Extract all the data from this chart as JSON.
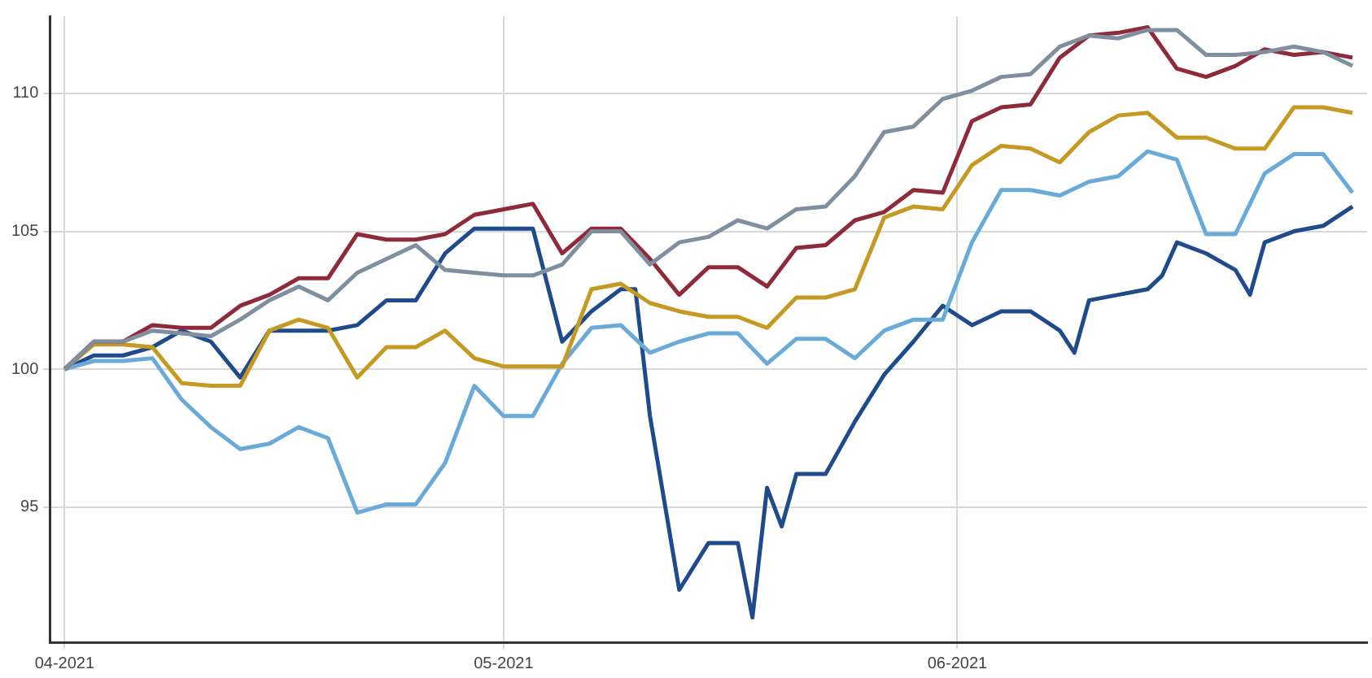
{
  "chart_data": {
    "type": "line",
    "x": [
      "2021-04-01",
      "2021-04-03",
      "2021-04-05",
      "2021-04-07",
      "2021-04-09",
      "2021-04-11",
      "2021-04-13",
      "2021-04-15",
      "2021-04-17",
      "2021-04-19",
      "2021-04-21",
      "2021-04-23",
      "2021-04-25",
      "2021-04-27",
      "2021-04-29",
      "2021-05-01",
      "2021-05-03",
      "2021-05-05",
      "2021-05-07",
      "2021-05-09",
      "2021-05-11",
      "2021-05-13",
      "2021-05-15",
      "2021-05-17",
      "2021-05-19",
      "2021-05-21",
      "2021-05-23",
      "2021-05-25",
      "2021-05-27",
      "2021-05-29",
      "2021-05-31",
      "2021-06-02",
      "2021-06-04",
      "2021-06-06",
      "2021-06-08",
      "2021-06-10",
      "2021-06-12",
      "2021-06-14",
      "2021-06-16",
      "2021-06-18",
      "2021-06-20",
      "2021-06-22",
      "2021-06-24",
      "2021-06-26",
      "2021-06-28"
    ],
    "series": [
      {
        "color": "#7f8fa0",
        "values": [
          100,
          101,
          101,
          101.4,
          101.3,
          101.2,
          101.8,
          102.5,
          103,
          102.5,
          103.5,
          104,
          104.5,
          103.6,
          103.5,
          103.4,
          103.4,
          103.8,
          105,
          105,
          103.8,
          104.6,
          104.8,
          105.4,
          105.1,
          105.8,
          105.9,
          107,
          108.6,
          108.8,
          109.8,
          110.1,
          110.6,
          110.7,
          111.7,
          112.1,
          112,
          112.3,
          112.3,
          111.4,
          111.4,
          111.5,
          111.7,
          111.5,
          111
        ]
      },
      {
        "color": "#8e2a3a",
        "values": [
          100,
          101,
          101,
          101.6,
          101.5,
          101.5,
          102.3,
          102.7,
          103.3,
          103.3,
          104.9,
          104.7,
          104.7,
          104.9,
          105.6,
          105.8,
          106,
          104.2,
          105.1,
          105.1,
          104,
          102.7,
          103.7,
          103.7,
          103,
          104.4,
          104.5,
          105.4,
          105.7,
          106.5,
          106.4,
          109,
          109.5,
          109.6,
          111.3,
          112.1,
          112.2,
          112.4,
          110.9,
          110.6,
          111,
          111.6,
          111.4,
          111.5,
          111.3
        ]
      },
      {
        "color": "#c49a22",
        "values": [
          100,
          100.9,
          100.9,
          100.8,
          99.5,
          99.4,
          99.4,
          101.4,
          101.8,
          101.5,
          99.7,
          100.8,
          100.8,
          101.4,
          100.4,
          100.1,
          100.1,
          100.1,
          102.9,
          103.1,
          102.4,
          102.1,
          101.9,
          101.9,
          101.5,
          102.6,
          102.6,
          102.9,
          105.5,
          105.9,
          105.8,
          107.4,
          108.1,
          108,
          107.5,
          108.6,
          109.2,
          109.3,
          108.4,
          108.4,
          108,
          108,
          109.5,
          109.5,
          109.3
        ]
      },
      {
        "color": "#6aaad8",
        "values": [
          100,
          100.3,
          100.3,
          100.4,
          98.9,
          97.9,
          97.1,
          97.3,
          97.9,
          97.5,
          94.8,
          95.1,
          95.1,
          96.6,
          99.4,
          98.3,
          98.3,
          100.2,
          101.5,
          101.6,
          100.6,
          101,
          101.3,
          101.3,
          100.2,
          101.1,
          101.1,
          100.4,
          101.4,
          101.8,
          101.8,
          104.6,
          106.5,
          106.5,
          106.3,
          106.8,
          107,
          107.9,
          107.6,
          104.9,
          104.9,
          107.1,
          107.8,
          107.8,
          106.4
        ]
      },
      {
        "color": "#1f4a8c",
        "x": [
          "2021-04-01",
          "2021-04-03",
          "2021-04-05",
          "2021-04-07",
          "2021-04-09",
          "2021-04-11",
          "2021-04-13",
          "2021-04-15",
          "2021-04-17",
          "2021-04-19",
          "2021-04-21",
          "2021-04-23",
          "2021-04-25",
          "2021-04-27",
          "2021-04-29",
          "2021-05-01",
          "2021-05-03",
          "2021-05-05",
          "2021-05-07",
          "2021-05-09",
          "2021-05-10",
          "2021-05-11",
          "2021-05-13",
          "2021-05-15",
          "2021-05-17",
          "2021-05-18",
          "2021-05-19",
          "2021-05-20",
          "2021-05-21",
          "2021-05-23",
          "2021-05-25",
          "2021-05-27",
          "2021-05-29",
          "2021-05-31",
          "2021-06-02",
          "2021-06-04",
          "2021-06-06",
          "2021-06-08",
          "2021-06-09",
          "2021-06-10",
          "2021-06-12",
          "2021-06-14",
          "2021-06-15",
          "2021-06-16",
          "2021-06-18",
          "2021-06-20",
          "2021-06-21",
          "2021-06-22",
          "2021-06-24",
          "2021-06-26",
          "2021-06-28"
        ],
        "values": [
          100,
          100.5,
          100.5,
          100.8,
          101.4,
          101,
          99.7,
          101.4,
          101.4,
          101.4,
          101.6,
          102.5,
          102.5,
          104.2,
          105.1,
          105.1,
          105.1,
          101,
          102.1,
          102.9,
          102.9,
          98.3,
          92,
          93.7,
          93.7,
          91,
          95.7,
          94.3,
          96.2,
          96.2,
          98.1,
          99.8,
          101,
          102.3,
          101.6,
          102.1,
          102.1,
          101.4,
          100.6,
          102.5,
          102.7,
          102.9,
          103.4,
          104.6,
          104.2,
          103.6,
          102.7,
          104.6,
          105,
          105.2,
          105.9
        ]
      }
    ],
    "xlim": [
      "2021-03-31",
      "2021-06-29"
    ],
    "xticks": [
      {
        "value": "2021-04-01",
        "label": "04-2021"
      },
      {
        "value": "2021-05-01",
        "label": "05-2021"
      },
      {
        "value": "2021-06-01",
        "label": "06-2021"
      }
    ],
    "ylim": [
      90.1,
      112.8
    ],
    "yticks": [
      95,
      100,
      105,
      110
    ],
    "grid": true,
    "marker": "none",
    "line_style": "solid"
  }
}
